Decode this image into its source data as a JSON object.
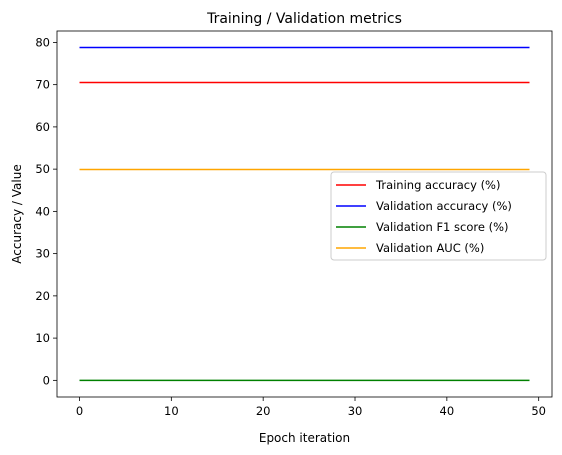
{
  "chart_data": {
    "type": "line",
    "title": "Training / Validation metrics",
    "xlabel": "Epoch iteration",
    "ylabel": "Accuracy / Value",
    "xlim": [
      -2.45,
      51.45
    ],
    "ylim": [
      -3.94,
      82.7
    ],
    "x_ticks": [
      0,
      10,
      20,
      30,
      40,
      50
    ],
    "y_ticks": [
      0,
      10,
      20,
      30,
      40,
      50,
      60,
      70,
      80
    ],
    "x_range": [
      0,
      49
    ],
    "grid": false,
    "legend_position": "center-right",
    "series": [
      {
        "name": "Training accuracy (%)",
        "color": "#ff0000",
        "values_constant": 70.5
      },
      {
        "name": "Validation accuracy (%)",
        "color": "#0000ff",
        "values_constant": 78.8
      },
      {
        "name": "Validation F1 score (%)",
        "color": "#008000",
        "values_constant": 0.0
      },
      {
        "name": "Validation AUC (%)",
        "color": "#ffa500",
        "values_constant": 49.9
      }
    ]
  }
}
